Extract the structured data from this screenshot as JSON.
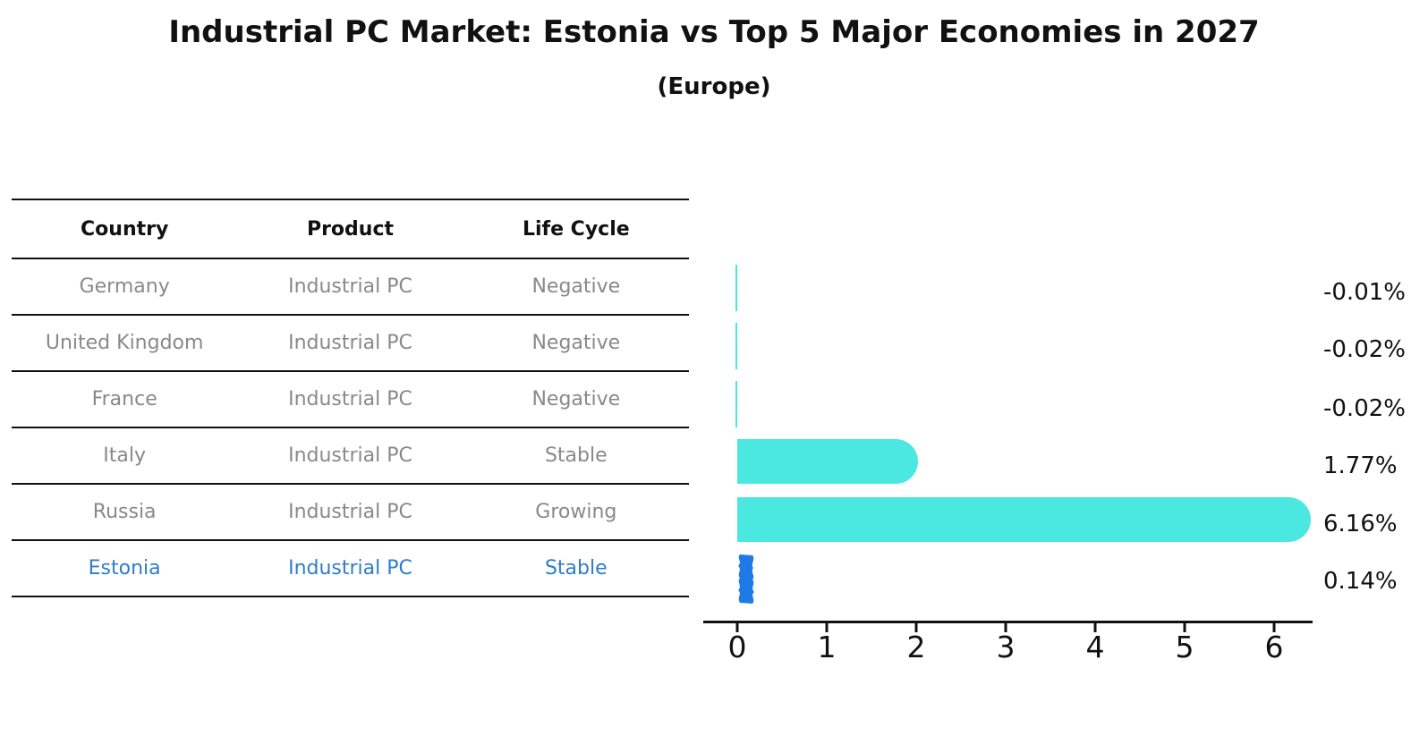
{
  "header": {
    "title": "Industrial PC Market: Estonia vs Top 5 Major Economies in 2027",
    "subtitle": "(Europe)"
  },
  "table": {
    "columns": [
      "Country",
      "Product",
      "Life Cycle"
    ],
    "rows": [
      {
        "country": "Germany",
        "product": "Industrial PC",
        "life_cycle": "Negative",
        "highlight": false
      },
      {
        "country": "United Kingdom",
        "product": "Industrial PC",
        "life_cycle": "Negative",
        "highlight": false
      },
      {
        "country": "France",
        "product": "Industrial PC",
        "life_cycle": "Negative",
        "highlight": false
      },
      {
        "country": "Italy",
        "product": "Industrial PC",
        "life_cycle": "Stable",
        "highlight": false
      },
      {
        "country": "Russia",
        "product": "Industrial PC",
        "life_cycle": "Growing",
        "highlight": false
      },
      {
        "country": "Estonia",
        "product": "Industrial PC",
        "life_cycle": "Stable",
        "highlight": true
      }
    ]
  },
  "chart_data": {
    "type": "bar",
    "orientation": "horizontal",
    "categories": [
      "Germany",
      "United Kingdom",
      "France",
      "Italy",
      "Russia",
      "Estonia"
    ],
    "values": [
      -0.01,
      -0.02,
      -0.02,
      1.77,
      6.16,
      0.14
    ],
    "value_labels": [
      "-0.01%",
      "-0.02%",
      "-0.02%",
      "1.77%",
      "6.16%",
      "0.14%"
    ],
    "xticks": [
      0,
      1,
      2,
      3,
      4,
      5,
      6
    ],
    "xlim": [
      -0.38,
      6.43
    ],
    "grid": false,
    "legend_position": "none",
    "bar_color": "#4AE8E0",
    "highlight_bar_color": "#1E7BE5",
    "highlight_text_color": "#2E7DCB",
    "axis_color": "#111111",
    "value_label_color": "#111111"
  }
}
